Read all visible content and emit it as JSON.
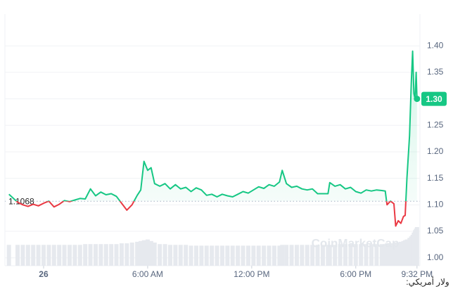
{
  "chart_data": {
    "type": "line",
    "x": [
      -2.0,
      -1.5,
      -1.2,
      -0.9,
      -0.6,
      -0.3,
      0,
      0.3,
      0.6,
      0.9,
      1.2,
      1.5,
      1.8,
      2.1,
      2.4,
      2.7,
      3.0,
      3.3,
      3.6,
      3.9,
      4.2,
      4.5,
      4.8,
      5.1,
      5.4,
      5.6,
      5.79,
      6.0,
      6.2,
      6.4,
      6.7,
      7.0,
      7.3,
      7.6,
      7.9,
      8.2,
      8.5,
      8.8,
      9.1,
      9.4,
      9.7,
      10.0,
      10.3,
      10.6,
      10.9,
      11.2,
      11.5,
      11.8,
      12.1,
      12.4,
      12.7,
      13.0,
      13.3,
      13.6,
      13.76,
      14.0,
      14.3,
      14.6,
      14.9,
      15.2,
      15.5,
      15.8,
      16.1,
      16.4,
      16.5,
      16.8,
      17.1,
      17.4,
      17.7,
      18.0,
      18.3,
      18.6,
      18.9,
      19.2,
      19.5,
      19.7,
      19.8,
      20.0,
      20.2,
      20.3,
      20.45,
      20.6,
      20.75,
      20.85,
      20.95,
      21.1,
      21.2,
      21.28,
      21.35,
      21.42,
      21.48,
      21.53
    ],
    "series": [
      {
        "color": "#16c784",
        "values": [
          1.12,
          1.105,
          1.1,
          1.097,
          1.101,
          1.098,
          1.103,
          1.107,
          1.096,
          1.101,
          1.108,
          1.106,
          1.109,
          1.112,
          1.111,
          1.13,
          1.117,
          1.124,
          1.119,
          1.121,
          1.116,
          1.103,
          1.09,
          1.1,
          1.118,
          1.128,
          1.182,
          1.165,
          1.17,
          1.14,
          1.135,
          1.14,
          1.13,
          1.138,
          1.13,
          1.133,
          1.125,
          1.132,
          1.128,
          1.118,
          1.12,
          1.115,
          1.12,
          1.117,
          1.115,
          1.12,
          1.125,
          1.122,
          1.128,
          1.134,
          1.131,
          1.138,
          1.135,
          1.143,
          1.165,
          1.14,
          1.133,
          1.135,
          1.13,
          1.128,
          1.13,
          1.121,
          1.121,
          1.121,
          1.142,
          1.135,
          1.138,
          1.13,
          1.133,
          1.125,
          1.122,
          1.128,
          1.126,
          1.128,
          1.127,
          1.126,
          1.1,
          1.107,
          1.102,
          1.06,
          1.07,
          1.065,
          1.078,
          1.08,
          1.15,
          1.23,
          1.33,
          1.39,
          1.31,
          1.3,
          1.35,
          1.3
        ]
      }
    ],
    "below_color": "#ea3943",
    "volume": [
      27,
      27,
      27,
      27,
      27,
      27,
      27,
      27,
      27,
      27,
      27,
      27,
      27,
      27,
      28,
      28,
      28,
      28,
      28,
      28,
      28,
      29,
      29,
      30,
      31,
      32,
      33,
      34,
      32,
      30,
      28,
      28,
      27,
      27,
      27,
      27,
      26,
      26,
      26,
      26,
      26,
      26,
      26,
      26,
      26,
      26,
      26,
      26,
      26,
      26,
      26,
      26,
      26,
      26,
      27,
      27,
      27,
      27,
      27,
      27,
      27,
      27,
      27,
      27,
      27,
      27,
      28,
      28,
      28,
      28,
      28,
      28,
      28,
      28,
      28,
      28,
      29,
      29,
      29,
      30,
      30,
      31,
      32,
      33,
      34,
      36,
      38,
      40,
      43,
      46,
      48,
      50
    ],
    "reference": 1.1068,
    "current_price": {
      "value": 1.3,
      "label": "1.30"
    },
    "xlim": [
      -2.23,
      21.7
    ],
    "xticks": [
      {
        "value": 0,
        "label": "26"
      },
      {
        "value": 6,
        "label": "6:00 AM"
      },
      {
        "value": 12,
        "label": "12:00 PM"
      },
      {
        "value": 18,
        "label": "6:00 PM"
      },
      {
        "value": 21.53,
        "label": "9:32 PM"
      }
    ],
    "ylim": [
      0.985,
      1.46
    ],
    "yticks": [
      {
        "value": 1.0,
        "label": "1.00"
      },
      {
        "value": 1.05,
        "label": "1.05"
      },
      {
        "value": 1.1,
        "label": "1.10"
      },
      {
        "value": 1.15,
        "label": "1.15"
      },
      {
        "value": 1.2,
        "label": "1.20"
      },
      {
        "value": 1.25,
        "label": "1.25"
      },
      {
        "value": 1.3,
        "label": "1.30"
      },
      {
        "value": 1.35,
        "label": "1.35"
      },
      {
        "value": 1.4,
        "label": "1.40"
      }
    ],
    "grid": true,
    "watermark": "CoinMarketCap",
    "currency_label": "ولار أمريكي:"
  }
}
